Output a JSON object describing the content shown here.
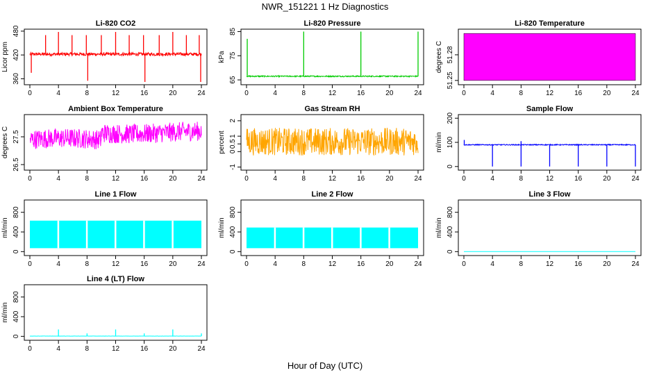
{
  "figure": {
    "title": "NWR_151221 1 Hz Diagnostics",
    "xlabel": "Hour of Day (UTC)"
  },
  "chart_data": [
    {
      "type": "line",
      "title": "Li-820 CO2",
      "ylabel": "Licor ppm",
      "color": "#ff0000",
      "xlim": [
        0,
        24
      ],
      "ylim": [
        345,
        485
      ],
      "xticks": [
        0,
        4,
        8,
        12,
        16,
        20,
        24
      ],
      "yticks": [
        360,
        420,
        480
      ],
      "baseline": 422,
      "noise": 4,
      "band_low": null,
      "spikes": [
        [
          0.2,
          375
        ],
        [
          2.2,
          470
        ],
        [
          4.0,
          478
        ],
        [
          5.9,
          470
        ],
        [
          7.9,
          470
        ],
        [
          8.1,
          355
        ],
        [
          10.0,
          470
        ],
        [
          12.0,
          478
        ],
        [
          13.9,
          470
        ],
        [
          15.9,
          470
        ],
        [
          16.1,
          352
        ],
        [
          18.1,
          470
        ],
        [
          20.0,
          478
        ],
        [
          21.9,
          470
        ],
        [
          23.7,
          470
        ],
        [
          23.9,
          352
        ]
      ]
    },
    {
      "type": "line",
      "title": "Li-820 Pressure",
      "ylabel": "kPa",
      "color": "#00cc00",
      "xlim": [
        0,
        24
      ],
      "ylim": [
        63,
        86
      ],
      "xticks": [
        0,
        4,
        8,
        12,
        16,
        20,
        24
      ],
      "yticks": [
        65,
        75,
        85
      ],
      "baseline": 66.5,
      "noise": 0.25,
      "band_low": null,
      "spikes": [
        [
          0.1,
          82
        ],
        [
          8.0,
          85
        ],
        [
          16.0,
          85
        ],
        [
          24.0,
          85
        ]
      ]
    },
    {
      "type": "line",
      "title": "Li-820 Temperature",
      "ylabel": "degrees C",
      "color": "#ff00ff",
      "xlim": [
        0,
        24
      ],
      "ylim": [
        51.245,
        51.31
      ],
      "xticks": [
        0,
        4,
        8,
        12,
        16,
        20,
        24
      ],
      "yticks": [
        51.25,
        51.28
      ],
      "filled_range": [
        51.25,
        51.305
      ],
      "baseline": null,
      "noise": 0,
      "band_low": null,
      "spikes": []
    },
    {
      "type": "line",
      "title": "Ambient Box Temperature",
      "ylabel": "degrees C",
      "color": "#ff00ff",
      "xlim": [
        0,
        24
      ],
      "ylim": [
        26.3,
        28.3
      ],
      "xticks": [
        0,
        4,
        8,
        12,
        16,
        20,
        24
      ],
      "yticks": [
        26.5,
        27.5
      ],
      "baseline": 27.4,
      "noise": 0.35,
      "band_low": null,
      "spikes": []
    },
    {
      "type": "line",
      "title": "Gas Stream RH",
      "ylabel": "percent",
      "color": "#ffa500",
      "xlim": [
        0,
        24
      ],
      "ylim": [
        -1.2,
        2.4
      ],
      "xticks": [
        0,
        4,
        8,
        12,
        16,
        20,
        24
      ],
      "yticks": [
        -1.0,
        0.0,
        0.5,
        1.0,
        2.0
      ],
      "baseline": 0.65,
      "noise": 0.9,
      "band_low": null,
      "spikes": []
    },
    {
      "type": "line",
      "title": "Sample Flow",
      "ylabel": "ml/min",
      "color": "#0000ff",
      "xlim": [
        0,
        24
      ],
      "ylim": [
        -15,
        215
      ],
      "xticks": [
        0,
        4,
        8,
        12,
        16,
        20,
        24
      ],
      "yticks": [
        0,
        100,
        200
      ],
      "baseline": 90,
      "noise": 2,
      "band_low": null,
      "spikes": [
        [
          0.05,
          110
        ],
        [
          4.0,
          0
        ],
        [
          8.0,
          0
        ],
        [
          12.0,
          0
        ],
        [
          16.0,
          0
        ],
        [
          20.0,
          0
        ],
        [
          24.0,
          0
        ],
        [
          8.0,
          105
        ]
      ]
    },
    {
      "type": "line",
      "title": "Line 1 Flow",
      "ylabel": "ml/min",
      "color": "#00ffff",
      "xlim": [
        0,
        24
      ],
      "ylim": [
        -80,
        1050
      ],
      "xticks": [
        0,
        4,
        8,
        12,
        16,
        20,
        24
      ],
      "yticks": [
        0,
        400,
        800
      ],
      "baseline": 620,
      "noise": 10,
      "band_low": 70,
      "spikes": []
    },
    {
      "type": "line",
      "title": "Line 2 Flow",
      "ylabel": "ml/min",
      "color": "#00ffff",
      "xlim": [
        0,
        24
      ],
      "ylim": [
        -80,
        1050
      ],
      "xticks": [
        0,
        4,
        8,
        12,
        16,
        20,
        24
      ],
      "yticks": [
        0,
        400,
        800
      ],
      "baseline": 480,
      "noise": 10,
      "band_low": 70,
      "spikes": []
    },
    {
      "type": "line",
      "title": "Line 3 Flow",
      "ylabel": "ml/min",
      "color": "#00ffff",
      "xlim": [
        0,
        24
      ],
      "ylim": [
        -80,
        1050
      ],
      "xticks": [
        0,
        4,
        8,
        12,
        16,
        20,
        24
      ],
      "yticks": [
        0,
        400,
        800
      ],
      "baseline": 0,
      "noise": 0,
      "band_low": null,
      "spikes": []
    },
    {
      "type": "line",
      "title": "Line 4 (LT) Flow",
      "ylabel": "ml/min",
      "color": "#00ffff",
      "xlim": [
        0,
        24
      ],
      "ylim": [
        -80,
        1050
      ],
      "xticks": [
        0,
        4,
        8,
        12,
        16,
        20,
        24
      ],
      "yticks": [
        0,
        400,
        800
      ],
      "baseline": 5,
      "noise": 2,
      "band_low": null,
      "spikes": [
        [
          4.0,
          140
        ],
        [
          8.0,
          60
        ],
        [
          12.0,
          140
        ],
        [
          16.0,
          60
        ],
        [
          20.0,
          140
        ],
        [
          24.0,
          60
        ]
      ]
    }
  ]
}
